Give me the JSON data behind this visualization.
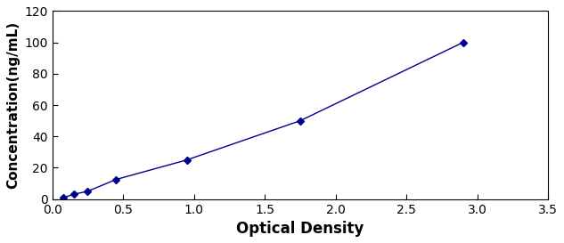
{
  "x": [
    0.08,
    0.15,
    0.25,
    0.45,
    0.95,
    1.75,
    2.9
  ],
  "y": [
    1.0,
    3.0,
    5.0,
    12.5,
    25.0,
    50.0,
    100.0
  ],
  "color": "#00008B",
  "marker": "D",
  "markersize": 4,
  "linewidth": 1.0,
  "linestyle": "-",
  "xlabel": "Optical Density",
  "ylabel": "Concentration(ng/mL)",
  "xlim": [
    0,
    3.5
  ],
  "ylim": [
    0,
    120
  ],
  "xticks": [
    0,
    0.5,
    1.0,
    1.5,
    2.0,
    2.5,
    3.0,
    3.5
  ],
  "yticks": [
    0,
    20,
    40,
    60,
    80,
    100,
    120
  ],
  "xlabel_fontsize": 12,
  "ylabel_fontsize": 11,
  "tick_fontsize": 10,
  "background_color": "#ffffff"
}
